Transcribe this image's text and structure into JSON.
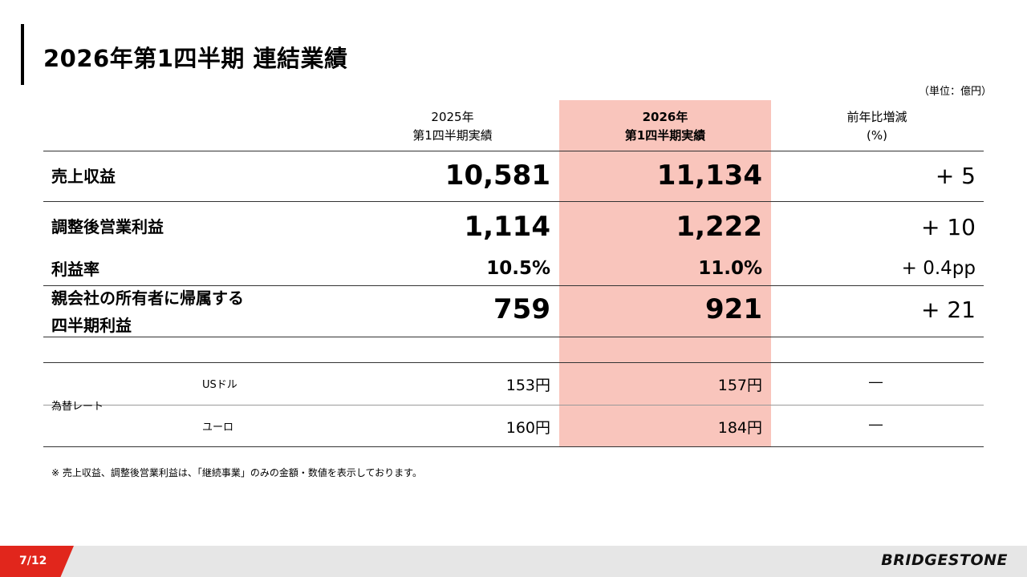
{
  "title": "2026年第1四半期 連結業績",
  "unit": "（単位：億円）",
  "columns": {
    "prev_line1": "2025年",
    "prev_line2": "第1四半期実績",
    "curr_line1": "2026年",
    "curr_line2": "第1四半期実績",
    "change_line1": "前年比増減",
    "change_line2": "(%)"
  },
  "rows": {
    "revenue": {
      "label": "売上収益",
      "prev": "10,581",
      "curr": "11,134",
      "change": "+ 5"
    },
    "adj_op": {
      "label": "調整後営業利益",
      "prev": "1,114",
      "curr": "1,222",
      "change": "+ 10"
    },
    "margin": {
      "label": "利益率",
      "prev": "10.5%",
      "curr": "11.0%",
      "change": "+ 0.4pp"
    },
    "net": {
      "label_line1": "親会社の所有者に帰属する",
      "label_line2": "四半期利益",
      "prev": "759",
      "curr": "921",
      "change": "+ 21"
    }
  },
  "fx": {
    "label": "為替レート",
    "usd": {
      "label": "USドル",
      "prev": "153円",
      "curr": "157円",
      "change": "―"
    },
    "eur": {
      "label": "ユーロ",
      "prev": "160円",
      "curr": "184円",
      "change": "―"
    }
  },
  "note": "※ 売上収益、調整後営業利益は、「継続事業」のみの金額・数値を表示しております。",
  "footer": {
    "page": "7/12",
    "logo": "BRIDGESTONE",
    "accent_color": "#e1261c",
    "highlight_color": "#f9c5bc"
  }
}
